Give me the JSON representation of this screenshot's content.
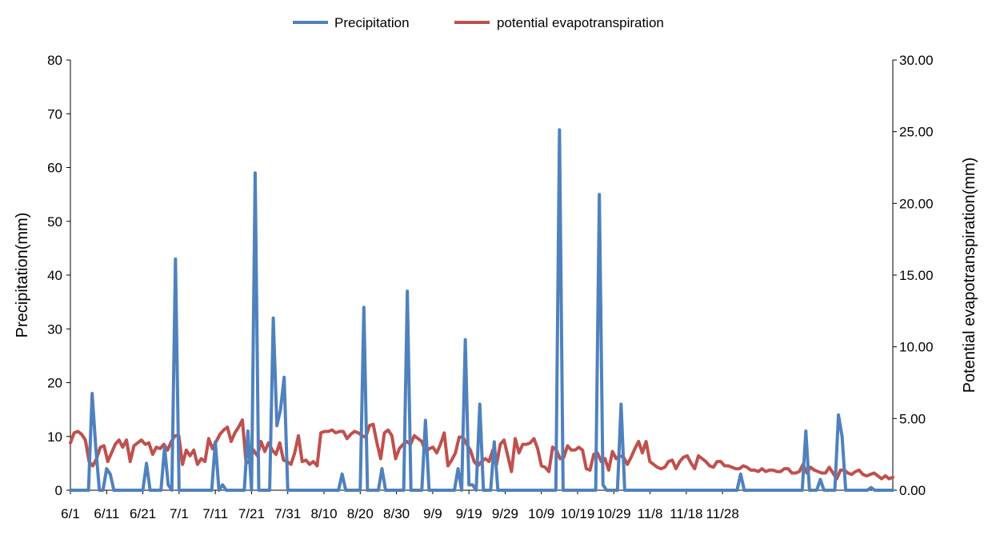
{
  "chart_data": {
    "type": "line",
    "title": "",
    "xlabel": "",
    "ylabel": "Precipitation(mm)",
    "y2label": "Potential evapotranspiration(mm)",
    "ylim": [
      0,
      80
    ],
    "y2lim": [
      0,
      30
    ],
    "yticks": [
      "0",
      "10",
      "20",
      "30",
      "40",
      "50",
      "60",
      "70",
      "80"
    ],
    "y2ticks": [
      "0.00",
      "5.00",
      "10.00",
      "15.00",
      "20.00",
      "25.00",
      "30.00"
    ],
    "xticks": [
      "6/1",
      "6/11",
      "6/21",
      "7/1",
      "7/11",
      "7/21",
      "7/31",
      "8/10",
      "8/20",
      "8/30",
      "9/9",
      "9/19",
      "9/29",
      "10/9",
      "10/19",
      "10/29",
      "11/8",
      "11/18",
      "11/28"
    ],
    "legend": [
      "Precipitation",
      "potential evapotranspiration"
    ],
    "legend_position": "top-center",
    "colors": {
      "precipitation": "#4f81bd",
      "pet": "#c0504d",
      "axis": "#000000"
    },
    "series": [
      {
        "name": "Precipitation",
        "axis": "left",
        "values": [
          0,
          0,
          0,
          0,
          0,
          0,
          18,
          8,
          0,
          0,
          4,
          3,
          0,
          0,
          0,
          0,
          0,
          0,
          0,
          0,
          0,
          5,
          0,
          0,
          0,
          0,
          8,
          1,
          0,
          43,
          0,
          0,
          0,
          0,
          0,
          0,
          0,
          0,
          0,
          0,
          9,
          0,
          1,
          0,
          0,
          0,
          0,
          0,
          0,
          11,
          0,
          59,
          0,
          0,
          0,
          0,
          32,
          12,
          15,
          21,
          0,
          0,
          0,
          0,
          0,
          0,
          0,
          0,
          0,
          0,
          0,
          0,
          0,
          0,
          0,
          3,
          0,
          0,
          0,
          0,
          0,
          34,
          0,
          0,
          0,
          0,
          4,
          0,
          0,
          0,
          0,
          0,
          0,
          37,
          0,
          0,
          0,
          0,
          13,
          0,
          0,
          0,
          0,
          0,
          0,
          0,
          0,
          4,
          0,
          28,
          1,
          1,
          0,
          16,
          0,
          0,
          0,
          9,
          0,
          0,
          0,
          0,
          0,
          0,
          0,
          0,
          0,
          0,
          0,
          0,
          0,
          0,
          0,
          0,
          0,
          67,
          0,
          0,
          0,
          0,
          0,
          0,
          0,
          0,
          0,
          0,
          55,
          1,
          0,
          0,
          0,
          0,
          16,
          0,
          0,
          0,
          0,
          0,
          0,
          0,
          0,
          0,
          0,
          0,
          0,
          0,
          0,
          0,
          0,
          0,
          0,
          0,
          0,
          0,
          0,
          0,
          0,
          0,
          0,
          0,
          0,
          0,
          0,
          0,
          0,
          3,
          0,
          0,
          0,
          0,
          0,
          0,
          0,
          0,
          0,
          0,
          0,
          0,
          0,
          0,
          0,
          0,
          0,
          11,
          0,
          0,
          0,
          2,
          0,
          0,
          0,
          0,
          14,
          10,
          0,
          0,
          0,
          0,
          0,
          0,
          0,
          0.5,
          0,
          0,
          0,
          0,
          0,
          0
        ]
      },
      {
        "name": "potential evapotranspiration",
        "axis": "right",
        "values": [
          3.3,
          4.0,
          4.1,
          3.9,
          3.5,
          2.0,
          1.7,
          2.2,
          3.0,
          3.1,
          2.0,
          2.6,
          3.2,
          3.5,
          3.0,
          3.5,
          2.0,
          3.1,
          3.3,
          3.5,
          3.2,
          3.3,
          2.5,
          3.0,
          2.9,
          3.2,
          2.8,
          3.4,
          3.8,
          3.8,
          1.8,
          2.8,
          2.4,
          2.8,
          1.8,
          2.2,
          2.0,
          3.6,
          2.9,
          3.4,
          3.9,
          4.2,
          4.4,
          3.4,
          4.0,
          4.4,
          4.9,
          1.9,
          2.0,
          2.8,
          2.4,
          3.4,
          2.7,
          3.3,
          2.8,
          2.5,
          3.3,
          2.1,
          2.0,
          1.8,
          2.6,
          3.8,
          2.0,
          2.1,
          1.8,
          2.0,
          1.7,
          4.0,
          4.1,
          4.1,
          4.2,
          4.0,
          4.1,
          4.1,
          3.6,
          3.9,
          4.1,
          4.0,
          3.8,
          3.7,
          4.5,
          4.6,
          3.3,
          2.2,
          4.0,
          4.2,
          3.8,
          2.2,
          2.9,
          3.2,
          3.4,
          3.2,
          3.8,
          3.6,
          3.4,
          2.7,
          2.9,
          3.0,
          2.6,
          3.2,
          4.0,
          1.7,
          2.1,
          2.6,
          3.7,
          3.7,
          3.2,
          2.8,
          2.0,
          1.7,
          2.0,
          2.2,
          2.0,
          2.8,
          1.8,
          3.2,
          3.5,
          2.4,
          1.3,
          3.6,
          2.6,
          3.2,
          3.2,
          3.3,
          3.6,
          2.9,
          1.7,
          1.6,
          1.3,
          3.0,
          2.8,
          2.2,
          2.3,
          3.1,
          2.8,
          2.8,
          3.0,
          2.8,
          1.5,
          1.4,
          2.5,
          2.6,
          2.0,
          2.2,
          1.4,
          2.7,
          2.2,
          2.4,
          2.3,
          1.8,
          2.3,
          2.9,
          3.4,
          2.6,
          3.4,
          2.0,
          1.8,
          1.6,
          1.5,
          1.6,
          2.0,
          2.1,
          1.5,
          2.0,
          2.3,
          2.4,
          1.9,
          1.5,
          2.4,
          2.2,
          2.0,
          1.7,
          1.6,
          2.0,
          2.0,
          1.7,
          1.7,
          1.6,
          1.5,
          1.5,
          1.7,
          1.6,
          1.4,
          1.4,
          1.3,
          1.5,
          1.3,
          1.4,
          1.4,
          1.3,
          1.3,
          1.5,
          1.5,
          1.2,
          1.2,
          1.3,
          1.8,
          1.2,
          1.6,
          1.4,
          1.3,
          1.2,
          1.2,
          1.6,
          1.2,
          0.8,
          1.4,
          1.4,
          1.2,
          1.1,
          1.3,
          1.4,
          1.1,
          1.0,
          1.1,
          1.2,
          1.0,
          0.8,
          1.0,
          0.8,
          0.9
        ]
      }
    ]
  }
}
